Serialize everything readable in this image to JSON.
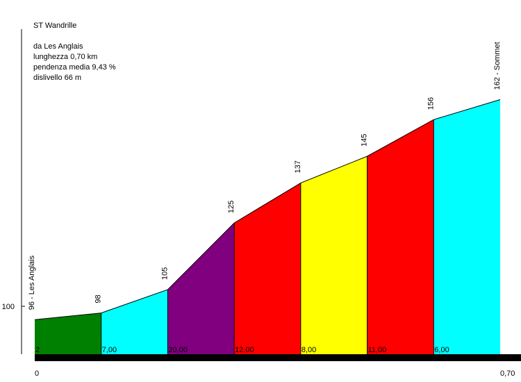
{
  "info": {
    "title": "ST Wandrille",
    "from": "da Les Anglais",
    "length": "lunghezza 0,70 km",
    "gradient": "pendenza media 9,43 %",
    "climb": "dislivello 66 m"
  },
  "chart_data": {
    "type": "area",
    "title": "ST Wandrille",
    "x_tick_labels": [
      "0",
      "0,70"
    ],
    "y_tick_labels": [
      "100"
    ],
    "y_ticks": [
      100
    ],
    "ylim": [
      86,
      180
    ],
    "xlim": [
      0,
      0.7
    ],
    "grid": false,
    "points": [
      {
        "x": 0.0,
        "y": 96,
        "label": "96 - Les Anglais"
      },
      {
        "x": 0.1,
        "y": 98,
        "label": "98"
      },
      {
        "x": 0.2,
        "y": 105,
        "label": "105"
      },
      {
        "x": 0.3,
        "y": 125,
        "label": "125"
      },
      {
        "x": 0.4,
        "y": 137,
        "label": "137"
      },
      {
        "x": 0.5,
        "y": 145,
        "label": "145"
      },
      {
        "x": 0.6,
        "y": 156,
        "label": "156"
      },
      {
        "x": 0.7,
        "y": 162,
        "label": "162 - Sommet"
      }
    ],
    "segments": [
      {
        "gradient_label": "2",
        "color": "#008000"
      },
      {
        "gradient_label": "7,00",
        "color": "#00ffff"
      },
      {
        "gradient_label": "20,00",
        "color": "#800080"
      },
      {
        "gradient_label": "12,00",
        "color": "#ff0000"
      },
      {
        "gradient_label": "8,00",
        "color": "#ffff00"
      },
      {
        "gradient_label": "11,00",
        "color": "#ff0000"
      },
      {
        "gradient_label": "6,00",
        "color": "#00ffff"
      }
    ]
  }
}
